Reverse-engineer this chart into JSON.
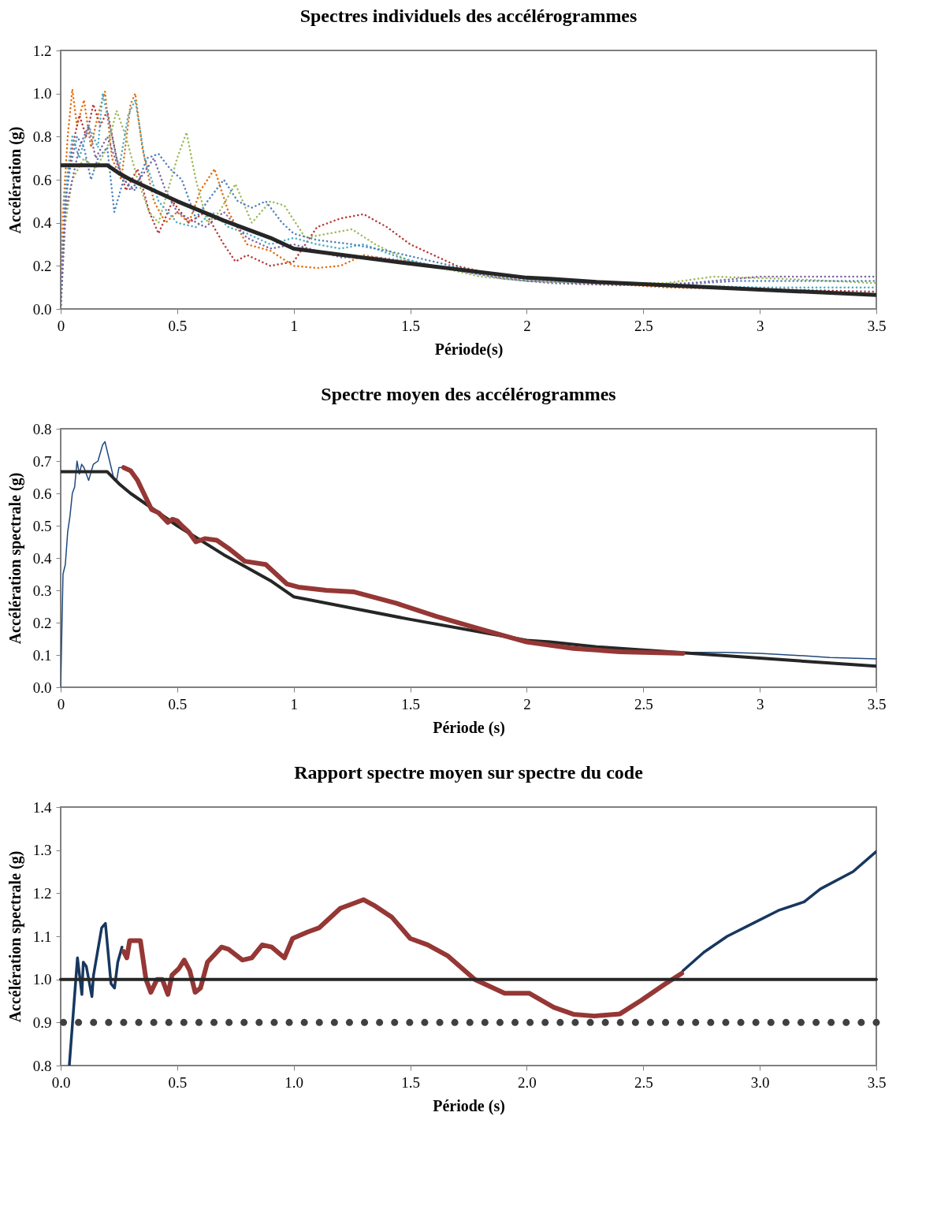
{
  "chart_data": [
    {
      "type": "line",
      "title": "Spectres individuels des accélérogrammes",
      "xlabel": "Période(s)",
      "ylabel": "Accélération (g)",
      "xlim": [
        0,
        3.5
      ],
      "xticks": [
        0,
        0.5,
        1,
        1.5,
        2,
        2.5,
        3,
        3.5
      ],
      "ylim": [
        0,
        1.2
      ],
      "yticks": [
        {
          "value": 0,
          "label": "0.0"
        },
        {
          "value": 0.2,
          "label": "0.2"
        },
        {
          "value": 0.4,
          "label": "0.4"
        },
        {
          "value": 0.6,
          "label": "0.6"
        },
        {
          "value": 0.8,
          "label": "0.8"
        },
        {
          "value": 1.0,
          "label": "1.0"
        },
        {
          "value": 1.2,
          "label": "1.2"
        }
      ],
      "series": [
        {
          "color": "#e46c0a",
          "line_style": "dotted",
          "x": [
            0,
            0.01,
            0.03,
            0.05,
            0.07,
            0.1,
            0.13,
            0.16,
            0.19,
            0.22,
            0.26,
            0.3,
            0.32,
            0.35,
            0.4,
            0.45,
            0.5,
            0.55,
            0.6,
            0.66,
            0.72,
            0.8,
            0.9,
            1.0,
            1.1,
            1.2,
            1.3,
            1.4,
            1.5,
            1.7,
            2.0,
            2.3,
            2.6,
            3.0,
            3.3,
            3.5
          ],
          "values": [
            0,
            0.45,
            0.8,
            1.02,
            0.85,
            0.97,
            0.75,
            0.9,
            1.01,
            0.7,
            0.6,
            0.95,
            1.0,
            0.75,
            0.5,
            0.4,
            0.45,
            0.4,
            0.55,
            0.65,
            0.45,
            0.3,
            0.27,
            0.2,
            0.19,
            0.2,
            0.25,
            0.23,
            0.22,
            0.18,
            0.13,
            0.12,
            0.1,
            0.09,
            0.08,
            0.065
          ]
        },
        {
          "color": "#b83a36",
          "line_style": "dotted",
          "x": [
            0,
            0.01,
            0.03,
            0.05,
            0.08,
            0.11,
            0.14,
            0.17,
            0.2,
            0.24,
            0.28,
            0.33,
            0.38,
            0.42,
            0.48,
            0.55,
            0.62,
            0.7,
            0.75,
            0.8,
            0.9,
            1.0,
            1.1,
            1.2,
            1.3,
            1.4,
            1.5,
            1.7,
            1.9,
            2.2,
            2.5,
            2.8,
            3.1,
            3.5
          ],
          "values": [
            0,
            0.3,
            0.6,
            0.75,
            0.9,
            0.8,
            0.95,
            0.85,
            0.92,
            0.7,
            0.55,
            0.65,
            0.45,
            0.35,
            0.5,
            0.4,
            0.45,
            0.3,
            0.22,
            0.25,
            0.2,
            0.22,
            0.38,
            0.42,
            0.44,
            0.38,
            0.3,
            0.2,
            0.15,
            0.12,
            0.11,
            0.1,
            0.09,
            0.08
          ]
        },
        {
          "color": "#9bbb59",
          "line_style": "dotted",
          "x": [
            0,
            0.02,
            0.05,
            0.1,
            0.15,
            0.2,
            0.24,
            0.28,
            0.33,
            0.38,
            0.42,
            0.46,
            0.5,
            0.54,
            0.58,
            0.63,
            0.68,
            0.75,
            0.82,
            0.9,
            0.96,
            1.05,
            1.15,
            1.25,
            1.35,
            1.5,
            1.6,
            1.8,
            2.0,
            2.3,
            2.6,
            2.8,
            3.1,
            3.5
          ],
          "values": [
            0,
            0.4,
            0.6,
            0.7,
            0.65,
            0.75,
            0.92,
            0.8,
            0.6,
            0.45,
            0.4,
            0.55,
            0.7,
            0.82,
            0.6,
            0.4,
            0.45,
            0.58,
            0.4,
            0.5,
            0.48,
            0.33,
            0.35,
            0.37,
            0.3,
            0.22,
            0.2,
            0.15,
            0.13,
            0.12,
            0.12,
            0.15,
            0.14,
            0.12
          ]
        },
        {
          "color": "#4bacc6",
          "line_style": "dotted",
          "x": [
            0,
            0.02,
            0.05,
            0.08,
            0.12,
            0.16,
            0.18,
            0.21,
            0.25,
            0.29,
            0.32,
            0.36,
            0.42,
            0.5,
            0.58,
            0.65,
            0.72,
            0.8,
            0.9,
            1.0,
            1.1,
            1.2,
            1.3,
            1.45,
            1.6,
            1.8,
            2.0,
            2.3,
            2.6,
            3.0,
            3.5
          ],
          "values": [
            0,
            0.55,
            0.8,
            0.7,
            0.85,
            0.75,
            1.0,
            0.85,
            0.65,
            0.9,
            0.97,
            0.7,
            0.5,
            0.4,
            0.38,
            0.45,
            0.38,
            0.35,
            0.3,
            0.33,
            0.3,
            0.28,
            0.3,
            0.24,
            0.2,
            0.16,
            0.13,
            0.12,
            0.11,
            0.1,
            0.1
          ]
        },
        {
          "color": "#4f81bd",
          "line_style": "dotted",
          "x": [
            0,
            0.02,
            0.04,
            0.07,
            0.1,
            0.13,
            0.16,
            0.2,
            0.23,
            0.27,
            0.32,
            0.37,
            0.42,
            0.47,
            0.52,
            0.58,
            0.63,
            0.7,
            0.76,
            0.82,
            0.88,
            0.95,
            1.0,
            1.1,
            1.25,
            1.4,
            1.6,
            1.8,
            2.0,
            2.3,
            2.6,
            2.9,
            3.2,
            3.5
          ],
          "values": [
            0,
            0.5,
            0.65,
            0.8,
            0.75,
            0.6,
            0.7,
            0.75,
            0.45,
            0.6,
            0.55,
            0.7,
            0.72,
            0.65,
            0.6,
            0.42,
            0.5,
            0.6,
            0.5,
            0.47,
            0.5,
            0.4,
            0.35,
            0.32,
            0.3,
            0.27,
            0.22,
            0.17,
            0.14,
            0.12,
            0.11,
            0.13,
            0.13,
            0.13
          ]
        },
        {
          "color": "#8064a2",
          "line_style": "dotted",
          "x": [
            0,
            0.02,
            0.05,
            0.08,
            0.12,
            0.15,
            0.2,
            0.25,
            0.3,
            0.35,
            0.4,
            0.45,
            0.5,
            0.55,
            0.62,
            0.7,
            0.8,
            0.9,
            1.0,
            1.1,
            1.2,
            1.35,
            1.5,
            1.7,
            1.9,
            2.1,
            2.4,
            2.7,
            3.0,
            3.2,
            3.5
          ],
          "values": [
            0,
            0.45,
            0.6,
            0.75,
            0.85,
            0.7,
            0.8,
            0.65,
            0.55,
            0.62,
            0.7,
            0.55,
            0.45,
            0.42,
            0.38,
            0.45,
            0.33,
            0.28,
            0.3,
            0.27,
            0.24,
            0.24,
            0.22,
            0.18,
            0.14,
            0.12,
            0.11,
            0.12,
            0.15,
            0.15,
            0.15
          ]
        },
        {
          "color": "#262626",
          "line_style": "solid",
          "x": [
            0,
            0.2,
            0.25,
            0.3,
            0.4,
            0.5,
            0.6,
            0.7,
            0.8,
            0.9,
            1.0,
            1.5,
            2.0,
            2.1,
            2.3,
            2.5,
            3.0,
            3.5
          ],
          "values": [
            0.667,
            0.667,
            0.63,
            0.6,
            0.55,
            0.5,
            0.455,
            0.41,
            0.37,
            0.33,
            0.28,
            0.21,
            0.145,
            0.14,
            0.125,
            0.115,
            0.09,
            0.065
          ]
        }
      ]
    },
    {
      "type": "line",
      "title": "Spectre moyen des accélérogrammes",
      "xlabel": "Période  (s)",
      "ylabel": "Accélération  spectrale  (g)",
      "xlim": [
        0,
        3.5
      ],
      "xticks": [
        0,
        0.5,
        1,
        1.5,
        2,
        2.5,
        3,
        3.5
      ],
      "ylim": [
        0,
        0.8
      ],
      "yticks": [
        {
          "value": 0,
          "label": "0.0"
        },
        0.1,
        0.2,
        0.3,
        0.4,
        0.5,
        0.6,
        0.7,
        0.8
      ],
      "series": [
        {
          "color": "#1f497d",
          "line_style": "solid",
          "x": [
            0,
            0.01,
            0.02,
            0.03,
            0.04,
            0.05,
            0.06,
            0.07,
            0.08,
            0.09,
            0.1,
            0.12,
            0.14,
            0.16,
            0.18,
            0.19,
            0.21,
            0.23,
            0.24,
            0.25,
            0.27,
            1.5,
            2.67,
            2.85,
            3.0,
            3.2,
            3.3,
            3.5
          ],
          "values": [
            0,
            0.35,
            0.38,
            0.48,
            0.53,
            0.6,
            0.62,
            0.7,
            0.66,
            0.69,
            0.68,
            0.64,
            0.69,
            0.7,
            0.75,
            0.76,
            0.7,
            0.64,
            0.64,
            0.68,
            0.68,
            null,
            0.108,
            0.108,
            0.105,
            0.097,
            0.092,
            0.088
          ]
        },
        {
          "color": "#262626",
          "line_style": "solid",
          "x": [
            0,
            0.2,
            0.25,
            0.3,
            0.4,
            0.5,
            0.6,
            0.7,
            0.8,
            0.9,
            1.0,
            1.5,
            2.0,
            2.1,
            2.3,
            2.5,
            3.0,
            3.5
          ],
          "values": [
            0.667,
            0.667,
            0.63,
            0.6,
            0.55,
            0.5,
            0.455,
            0.41,
            0.37,
            0.33,
            0.28,
            0.21,
            0.145,
            0.14,
            0.125,
            0.115,
            0.09,
            0.065
          ]
        },
        {
          "color": "#953735",
          "line_style": "solid",
          "x": [
            0.27,
            0.3,
            0.33,
            0.37,
            0.39,
            0.42,
            0.46,
            0.48,
            0.5,
            0.52,
            0.55,
            0.58,
            0.62,
            0.67,
            0.72,
            0.79,
            0.88,
            0.97,
            1.02,
            1.14,
            1.26,
            1.44,
            1.61,
            1.8,
            2.0,
            2.2,
            2.4,
            2.67
          ],
          "values": [
            0.68,
            0.67,
            0.64,
            0.58,
            0.55,
            0.54,
            0.51,
            0.52,
            0.515,
            0.5,
            0.48,
            0.45,
            0.46,
            0.455,
            0.43,
            0.39,
            0.38,
            0.32,
            0.31,
            0.3,
            0.295,
            0.26,
            0.22,
            0.18,
            0.14,
            0.12,
            0.11,
            0.105
          ]
        }
      ]
    },
    {
      "type": "line",
      "title": "Rapport spectre moyen sur spectre du code",
      "xlabel": "Période  (s)",
      "ylabel": "Accélération  spectrale  (g)",
      "xlim": [
        0,
        3.5
      ],
      "xticks": [
        {
          "value": 0,
          "label": "0.0"
        },
        0.5,
        {
          "value": 1,
          "label": "1.0"
        },
        1.5,
        {
          "value": 2,
          "label": "2.0"
        },
        2.5,
        {
          "value": 3,
          "label": "3.0"
        },
        3.5
      ],
      "ylim": [
        0.8,
        1.4
      ],
      "yticks": [
        0.8,
        0.9,
        {
          "value": 1.0,
          "label": "1.0"
        },
        1.1,
        1.2,
        1.3,
        1.4
      ],
      "ref_lines": [
        {
          "axis": "y",
          "value": 1.0,
          "color": "#262626",
          "line_style": "solid"
        },
        {
          "axis": "y",
          "value": 0.9,
          "color": "#404040",
          "line_style": "dotted"
        }
      ],
      "series": [
        {
          "color": "#17375e",
          "line_style": "solid",
          "x": [
            0.037,
            0.072,
            0.091,
            0.097,
            0.11,
            0.134,
            0.141,
            0.176,
            0.192,
            0.216,
            0.231,
            0.245,
            0.263,
            1.5,
            2.67,
            2.76,
            2.86,
            2.97,
            3.08,
            3.19,
            3.26,
            3.4,
            3.5
          ],
          "values": [
            0.8,
            1.05,
            0.965,
            1.04,
            1.03,
            0.96,
            1.01,
            1.12,
            1.13,
            0.99,
            0.98,
            1.04,
            1.075,
            null,
            1.02,
            1.063,
            1.1,
            1.13,
            1.16,
            1.18,
            1.21,
            1.25,
            1.297
          ]
        },
        {
          "color": "#953735",
          "line_style": "solid",
          "x": [
            0.27,
            0.284,
            0.296,
            0.342,
            0.366,
            0.387,
            0.413,
            0.436,
            0.46,
            0.478,
            0.507,
            0.53,
            0.554,
            0.577,
            0.6,
            0.63,
            0.69,
            0.72,
            0.78,
            0.82,
            0.865,
            0.906,
            0.96,
            0.995,
            1.06,
            1.11,
            1.2,
            1.3,
            1.35,
            1.42,
            1.5,
            1.575,
            1.66,
            1.777,
            1.905,
            2.01,
            2.116,
            2.2,
            2.29,
            2.4,
            2.49,
            2.59,
            2.665
          ],
          "values": [
            1.065,
            1.05,
            1.09,
            1.09,
            1.0,
            0.97,
            1.0,
            1.0,
            0.965,
            1.01,
            1.025,
            1.045,
            1.02,
            0.97,
            0.98,
            1.04,
            1.075,
            1.07,
            1.045,
            1.05,
            1.08,
            1.075,
            1.05,
            1.095,
            1.11,
            1.12,
            1.165,
            1.185,
            1.17,
            1.145,
            1.095,
            1.08,
            1.055,
            1.0,
            0.968,
            0.968,
            0.935,
            0.919,
            0.915,
            0.92,
            0.951,
            0.988,
            1.014
          ]
        }
      ]
    }
  ]
}
